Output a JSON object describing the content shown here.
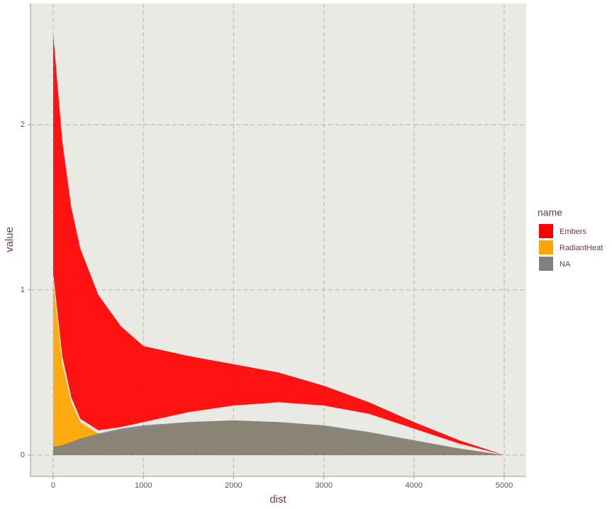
{
  "chart_data": {
    "type": "ribbon",
    "x_label": "dist",
    "y_label": "value",
    "legend_title": "name",
    "x": [
      0,
      100,
      200,
      300,
      500,
      750,
      1000,
      1500,
      2000,
      2500,
      3000,
      3500,
      4000,
      4500,
      5000
    ],
    "series": [
      {
        "name": "Embers",
        "color": "#ff0000",
        "upper": [
          2.55,
          1.9,
          1.5,
          1.25,
          0.97,
          0.78,
          0.66,
          0.6,
          0.55,
          0.5,
          0.42,
          0.32,
          0.2,
          0.09,
          0
        ],
        "lower": [
          1.1,
          0.6,
          0.35,
          0.22,
          0.15,
          0.17,
          0.2,
          0.26,
          0.3,
          0.32,
          0.3,
          0.25,
          0.16,
          0.07,
          0
        ]
      },
      {
        "name": "RadiantHeat",
        "color": "#ffa500",
        "upper": [
          1.05,
          0.55,
          0.32,
          0.2,
          0.13,
          0.14,
          0.16,
          0.2,
          0.21,
          0.2,
          0.17,
          0.13,
          0.08,
          0.04,
          0
        ],
        "lower": [
          0,
          0,
          0,
          0,
          0,
          0,
          0,
          0,
          0,
          0,
          0,
          0,
          0,
          0,
          0
        ]
      },
      {
        "name": "NA",
        "color": "#808080",
        "upper": [
          0.05,
          0.06,
          0.08,
          0.1,
          0.13,
          0.16,
          0.18,
          0.2,
          0.21,
          0.2,
          0.18,
          0.14,
          0.09,
          0.04,
          0
        ],
        "lower": [
          0,
          0,
          0,
          0,
          0,
          0,
          0,
          0,
          0,
          0,
          0,
          0,
          0,
          0,
          0
        ]
      }
    ],
    "draw_order": [
      1,
      0,
      2
    ],
    "xlim": [
      -252,
      5244
    ],
    "ylim": [
      -0.129,
      2.734
    ],
    "xticks": [
      0,
      1000,
      2000,
      3000,
      4000,
      5000
    ],
    "yticks": [
      0,
      1,
      2
    ],
    "grid": true,
    "legend": "right"
  }
}
